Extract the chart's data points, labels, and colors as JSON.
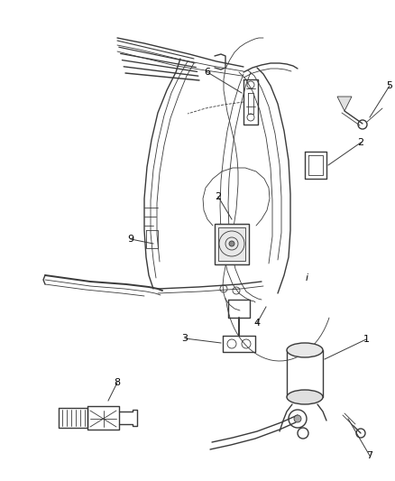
{
  "background_color": "#ffffff",
  "line_color": "#3a3a3a",
  "label_color": "#000000",
  "fig_width": 4.38,
  "fig_height": 5.33,
  "dpi": 100
}
